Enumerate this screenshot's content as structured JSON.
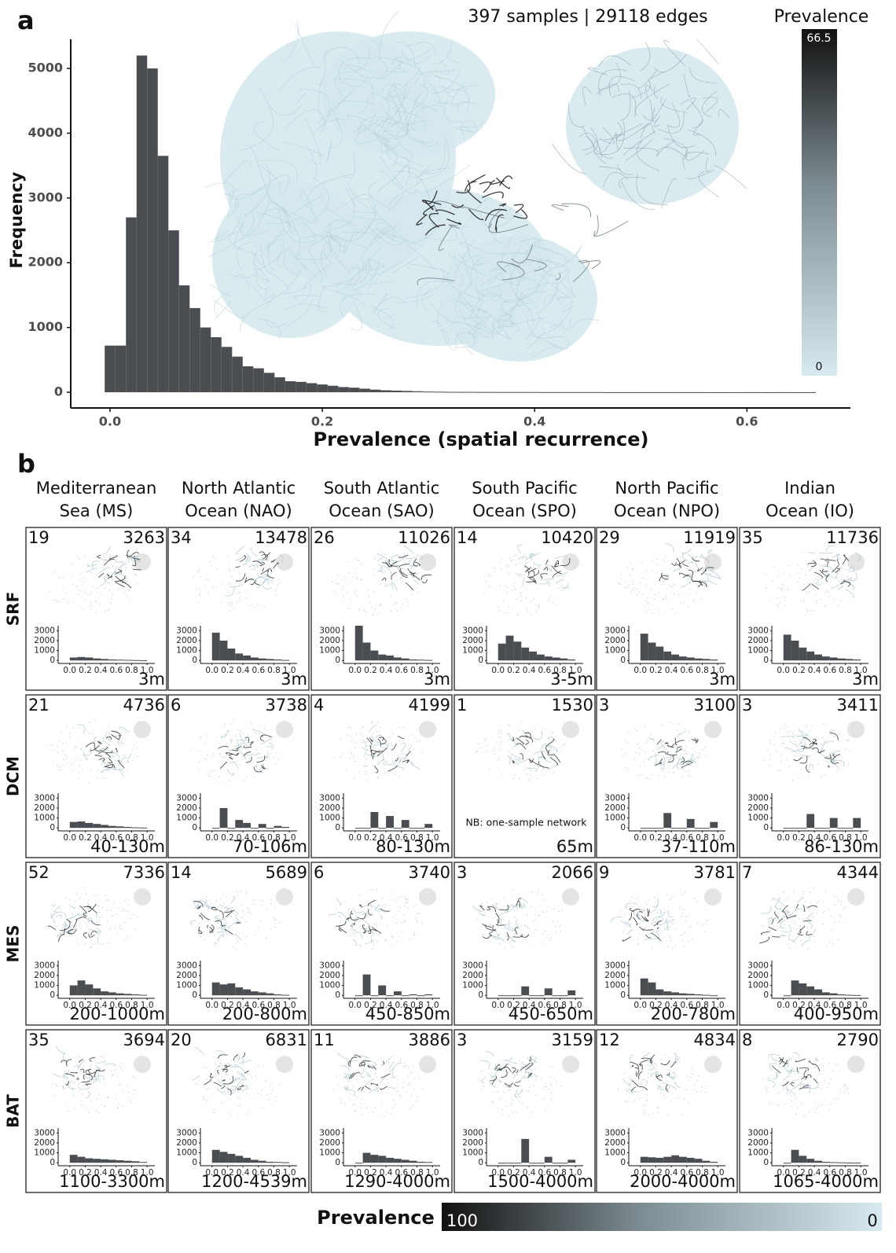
{
  "panel_labels": [
    "a",
    "b"
  ],
  "chart_data": {
    "type": "histogram",
    "x_label": "Prevalence (spatial recurrence)",
    "y_label": "Frequency",
    "bins": [
      -0.005,
      0.005,
      0.015,
      0.025,
      0.035,
      0.045,
      0.055,
      0.065,
      0.075,
      0.085,
      0.095,
      0.105,
      0.115,
      0.125,
      0.135,
      0.145,
      0.155,
      0.165,
      0.175,
      0.185,
      0.195,
      0.205,
      0.215,
      0.225,
      0.235,
      0.245,
      0.255,
      0.265,
      0.275,
      0.285,
      0.295,
      0.305,
      0.315,
      0.325,
      0.335,
      0.345,
      0.355,
      0.365,
      0.375,
      0.385,
      0.395,
      0.405,
      0.415,
      0.425,
      0.435,
      0.445,
      0.455,
      0.465,
      0.475,
      0.485,
      0.495,
      0.505,
      0.515,
      0.525,
      0.535,
      0.545,
      0.555,
      0.565,
      0.575,
      0.585,
      0.595,
      0.605,
      0.615,
      0.625,
      0.635,
      0.645,
      0.655,
      0.665
    ],
    "values": [
      720,
      720,
      2700,
      5200,
      5000,
      3650,
      2500,
      1650,
      1300,
      1000,
      850,
      700,
      550,
      400,
      370,
      300,
      230,
      170,
      160,
      140,
      120,
      100,
      80,
      70,
      55,
      40,
      30,
      25,
      20,
      15,
      10,
      8,
      6,
      5,
      5,
      4,
      4,
      3,
      3,
      3,
      3,
      2,
      2,
      2,
      2,
      2,
      2,
      1,
      1,
      1,
      1,
      1,
      1,
      1,
      1,
      1,
      1,
      0,
      0,
      1,
      1,
      1,
      0,
      1,
      1,
      0,
      1
    ],
    "color": "#4a4d51",
    "xlim": [
      -0.037,
      0.696
    ],
    "ylim": [
      -243,
      5450
    ],
    "xticks": [
      {
        "value": 0,
        "label": "0.0"
      },
      0.2,
      0.4,
      0.6
    ],
    "yticks": [
      0,
      1000,
      2000,
      3000,
      4000,
      5000
    ],
    "grid": false
  },
  "network": {
    "caption": "397 samples | 29118 edges",
    "colorbar_title": "Prevalence",
    "colorbar_max": 66.5,
    "colorbar_min": 0
  },
  "panel_b": {
    "columns": [
      [
        "Mediterranean",
        "Sea (MS)"
      ],
      [
        "North Atlantic",
        "Ocean (NAO)"
      ],
      [
        "South Atlantic",
        "Ocean (SAO)"
      ],
      [
        "South Pacific",
        "Ocean (SPO)"
      ],
      [
        "North Pacific",
        "Ocean (NPO)"
      ],
      [
        "Indian",
        "Ocean (IO)"
      ]
    ],
    "rows": [
      "SRF",
      "DCM",
      "MES",
      "BAT"
    ],
    "mini_axes": {
      "bins": [
        0,
        0.1,
        0.2,
        0.3,
        0.4,
        0.5,
        0.6,
        0.7,
        0.8,
        0.9,
        1
      ],
      "xlim": [
        -0.15,
        1.1
      ],
      "ylim": [
        -300,
        3500
      ],
      "xticks": [
        {
          "value": 0,
          "label": "0.0"
        },
        0.2,
        0.4,
        0.6,
        0.8,
        {
          "value": 1,
          "label": "1.0"
        }
      ],
      "yticks": [
        0,
        1000,
        2000,
        3000
      ],
      "color": "#4a4d51"
    },
    "cells": [
      [
        {
          "samples": 19,
          "edges": 3263,
          "depth": "3m",
          "chart": {
            "type": "histogram",
            "values": [
              300,
              350,
              300,
              200,
              150,
              100,
              80,
              60,
              40,
              20
            ]
          }
        },
        {
          "samples": 34,
          "edges": 13478,
          "depth": "3m",
          "chart": {
            "type": "histogram",
            "values": [
              2800,
              2000,
              1200,
              700,
              500,
              300,
              200,
              150,
              100,
              50
            ]
          }
        },
        {
          "samples": 26,
          "edges": 11026,
          "depth": "3m",
          "chart": {
            "type": "histogram",
            "values": [
              3500,
              1800,
              1000,
              600,
              500,
              300,
              200,
              100,
              80,
              50
            ]
          }
        },
        {
          "samples": 14,
          "edges": 10420,
          "depth": "3-5m",
          "chart": {
            "type": "histogram",
            "values": [
              1700,
              2500,
              1900,
              1300,
              900,
              600,
              400,
              300,
              200,
              100
            ]
          }
        },
        {
          "samples": 29,
          "edges": 11919,
          "depth": "3m",
          "chart": {
            "type": "histogram",
            "values": [
              2700,
              1800,
              1400,
              900,
              600,
              400,
              300,
              200,
              150,
              100
            ]
          }
        },
        {
          "samples": 35,
          "edges": 11736,
          "depth": "3m",
          "chart": {
            "type": "histogram",
            "values": [
              2600,
              2000,
              1300,
              900,
              600,
              400,
              300,
              200,
              150,
              100
            ]
          }
        }
      ],
      [
        {
          "samples": 21,
          "edges": 4736,
          "depth": "40-130m",
          "chart": {
            "type": "histogram",
            "values": [
              600,
              650,
              500,
              400,
              300,
              200,
              150,
              100,
              50,
              30
            ]
          }
        },
        {
          "samples": 6,
          "edges": 3738,
          "depth": "70-106m",
          "chart": {
            "type": "histogram",
            "values": [
              0,
              2000,
              0,
              800,
              500,
              0,
              400,
              0,
              200,
              100
            ]
          }
        },
        {
          "samples": 4,
          "edges": 4199,
          "depth": "80-130m",
          "chart": {
            "type": "histogram",
            "values": [
              0,
              0,
              1600,
              0,
              1200,
              0,
              800,
              0,
              0,
              400
            ]
          }
        },
        {
          "samples": 1,
          "edges": 1530,
          "depth": "65m",
          "note": "NB: one-sample network"
        },
        {
          "samples": 3,
          "edges": 3100,
          "depth": "37-110m",
          "chart": {
            "type": "histogram",
            "values": [
              0,
              0,
              0,
              1500,
              0,
              0,
              900,
              0,
              0,
              600
            ]
          }
        },
        {
          "samples": 3,
          "edges": 3411,
          "depth": "86-130m",
          "chart": {
            "type": "histogram",
            "values": [
              0,
              0,
              0,
              1400,
              0,
              0,
              1000,
              0,
              0,
              1000
            ]
          }
        }
      ],
      [
        {
          "samples": 52,
          "edges": 7336,
          "depth": "200-1000m",
          "chart": {
            "type": "histogram",
            "values": [
              1000,
              1500,
              1100,
              700,
              400,
              300,
              200,
              150,
              100,
              50
            ]
          }
        },
        {
          "samples": 14,
          "edges": 5689,
          "depth": "200-800m",
          "chart": {
            "type": "histogram",
            "values": [
              1300,
              1100,
              1200,
              800,
              600,
              400,
              300,
              200,
              100,
              50
            ]
          }
        },
        {
          "samples": 6,
          "edges": 3740,
          "depth": "450-850m",
          "chart": {
            "type": "histogram",
            "values": [
              0,
              2100,
              0,
              1000,
              0,
              400,
              0,
              100,
              0,
              100
            ]
          }
        },
        {
          "samples": 3,
          "edges": 2066,
          "depth": "450-650m",
          "chart": {
            "type": "histogram",
            "values": [
              0,
              0,
              0,
              900,
              0,
              0,
              700,
              0,
              0,
              500
            ]
          }
        },
        {
          "samples": 9,
          "edges": 3781,
          "depth": "200-780m",
          "chart": {
            "type": "histogram",
            "values": [
              1700,
              1300,
              600,
              400,
              300,
              200,
              150,
              100,
              50,
              0
            ]
          }
        },
        {
          "samples": 7,
          "edges": 4344,
          "depth": "400-950m",
          "chart": {
            "type": "histogram",
            "values": [
              0,
              1500,
              1200,
              900,
              600,
              300,
              200,
              100,
              50,
              30
            ]
          }
        }
      ],
      [
        {
          "samples": 35,
          "edges": 3694,
          "depth": "1100-3300m",
          "chart": {
            "type": "histogram",
            "values": [
              800,
              600,
              450,
              400,
              350,
              300,
              250,
              200,
              150,
              80
            ]
          }
        },
        {
          "samples": 20,
          "edges": 6831,
          "depth": "1200-4539m",
          "chart": {
            "type": "histogram",
            "values": [
              1300,
              1100,
              900,
              700,
              500,
              300,
              200,
              100,
              80,
              50
            ]
          }
        },
        {
          "samples": 11,
          "edges": 3886,
          "depth": "1290-4000m",
          "chart": {
            "type": "histogram",
            "values": [
              0,
              1000,
              800,
              700,
              500,
              400,
              300,
              200,
              100,
              80
            ]
          }
        },
        {
          "samples": 3,
          "edges": 3159,
          "depth": "1500-4000m",
          "chart": {
            "type": "histogram",
            "values": [
              0,
              0,
              0,
              2400,
              0,
              0,
              600,
              0,
              0,
              300
            ]
          }
        },
        {
          "samples": 12,
          "edges": 4834,
          "depth": "2000-4000m",
          "chart": {
            "type": "histogram",
            "values": [
              600,
              550,
              500,
              600,
              750,
              600,
              500,
              400,
              200,
              100
            ]
          }
        },
        {
          "samples": 8,
          "edges": 2790,
          "depth": "1065-4000m",
          "chart": {
            "type": "histogram",
            "values": [
              0,
              1300,
              700,
              400,
              200,
              100,
              60,
              40,
              20,
              10
            ]
          }
        }
      ]
    ],
    "colorbar_title": "Prevalence",
    "colorbar_max": 100,
    "colorbar_min": 0
  }
}
